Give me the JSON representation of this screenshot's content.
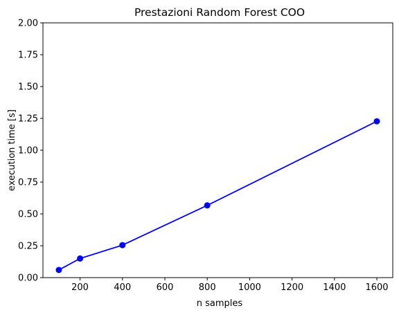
{
  "chart_data": {
    "type": "line",
    "title": "Prestazioni Random Forest COO",
    "xlabel": "n samples",
    "ylabel": "execution time [s]",
    "xlim": [
      25,
      1675
    ],
    "ylim": [
      0,
      2.0
    ],
    "x_ticks": [
      200,
      400,
      600,
      800,
      1000,
      1200,
      1400,
      1600
    ],
    "y_ticks": [
      0.0,
      0.25,
      0.5,
      0.75,
      1.0,
      1.25,
      1.5,
      1.75,
      2.0
    ],
    "x_tick_labels": [
      "200",
      "400",
      "600",
      "800",
      "1000",
      "1200",
      "1400",
      "1600"
    ],
    "y_tick_labels": [
      "0.00",
      "0.25",
      "0.50",
      "0.75",
      "1.00",
      "1.25",
      "1.50",
      "1.75",
      "2.00"
    ],
    "grid": false,
    "legend": "none",
    "series": [
      {
        "color": "#0000ff",
        "marker": "circle",
        "x": [
          100,
          200,
          400,
          800,
          1600
        ],
        "values": [
          0.06,
          0.15,
          0.255,
          0.567,
          1.227
        ]
      }
    ]
  }
}
